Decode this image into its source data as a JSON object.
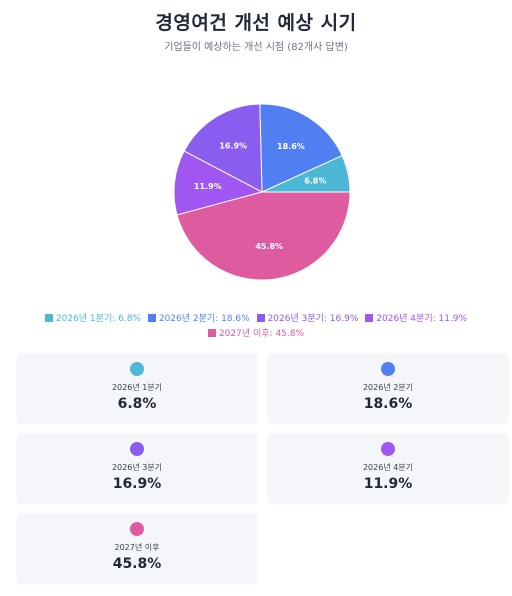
{
  "header": {
    "title": "경영여건 개선 예상 시기",
    "subtitle": "기업들이 예상하는 개선 시점 (82개사 답변)"
  },
  "chart_data": {
    "type": "pie",
    "title": "경영여건 개선 예상 시기",
    "subtitle": "기업들이 예상하는 개선 시점 (82개사 답변)",
    "unit": "%",
    "slices": [
      {
        "label": "2026년 1분기",
        "value": 6.8,
        "value_label": "6.8%",
        "legend": "2026년 1분기: 6.8%",
        "color": "#4db8d6"
      },
      {
        "label": "2026년 2분기",
        "value": 18.6,
        "value_label": "18.6%",
        "legend": "2026년 2분기: 18.6%",
        "color": "#4f7ff0"
      },
      {
        "label": "2026년 3분기",
        "value": 16.9,
        "value_label": "16.9%",
        "legend": "2026년 3분기: 16.9%",
        "color": "#8b5cf0"
      },
      {
        "label": "2026년 4분기",
        "value": 11.9,
        "value_label": "11.9%",
        "legend": "2026년 4분기: 11.9%",
        "color": "#a056f0"
      },
      {
        "label": "2027년 이후",
        "value": 45.8,
        "value_label": "45.8%",
        "legend": "2027년 이후: 45.8%",
        "color": "#de5b9f"
      }
    ],
    "legend_position": "bottom"
  },
  "cards": [
    {
      "label": "2026년 1분기",
      "value": "6.8%",
      "color": "#4db8d6"
    },
    {
      "label": "2026년 2분기",
      "value": "18.6%",
      "color": "#4f7ff0"
    },
    {
      "label": "2026년 3분기",
      "value": "16.9%",
      "color": "#8b5cf0"
    },
    {
      "label": "2026년 4분기",
      "value": "11.9%",
      "color": "#a056f0"
    },
    {
      "label": "2027년 이후",
      "value": "45.8%",
      "color": "#de5b9f"
    }
  ]
}
